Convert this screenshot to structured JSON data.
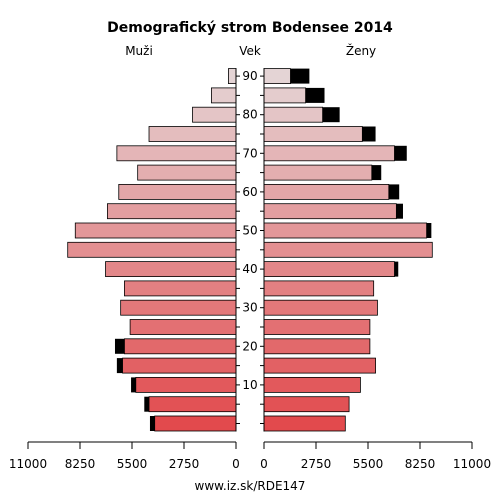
{
  "chart_data": {
    "type": "bar",
    "title": "Demografický strom Bodensee 2014",
    "left_label": "Muži",
    "center_label": "Vek",
    "right_label": "Ženy",
    "footer": "www.iz.sk/RDE147",
    "age_tick_labels": [
      "10",
      "20",
      "30",
      "40",
      "50",
      "60",
      "70",
      "80",
      "90"
    ],
    "age_tick_values": [
      10,
      20,
      30,
      40,
      50,
      60,
      70,
      80,
      90
    ],
    "x_tick_labels_left": [
      "11000",
      "8250",
      "5500",
      "2750",
      "0"
    ],
    "x_tick_values_left": [
      11000,
      8250,
      5500,
      2750,
      0
    ],
    "x_tick_labels_right": [
      "0",
      "2750",
      "5500",
      "8250",
      "11000"
    ],
    "x_tick_values_right": [
      0,
      2750,
      5500,
      8250,
      11000
    ],
    "xlim": [
      0,
      11000
    ],
    "age_groups": [
      "0-4",
      "5-9",
      "10-14",
      "15-19",
      "20-24",
      "25-29",
      "30-34",
      "35-39",
      "40-44",
      "45-49",
      "50-54",
      "55-59",
      "60-64",
      "65-69",
      "70-74",
      "75-79",
      "80-84",
      "85-89",
      "90+"
    ],
    "series": [
      {
        "name": "Muži",
        "values": [
          4300,
          4600,
          5300,
          6000,
          5900,
          5600,
          6100,
          5900,
          6900,
          8900,
          8500,
          6800,
          6200,
          5200,
          6300,
          4600,
          2300,
          1300,
          400
        ],
        "excess": [
          250,
          250,
          250,
          300,
          500,
          0,
          0,
          0,
          0,
          0,
          0,
          0,
          0,
          0,
          0,
          0,
          0,
          0,
          0
        ]
      },
      {
        "name": "Ženy",
        "values": [
          4300,
          4500,
          5100,
          5900,
          5600,
          5600,
          6000,
          5800,
          6900,
          8900,
          8600,
          7000,
          6600,
          5700,
          6900,
          5200,
          3100,
          2200,
          1400
        ],
        "excess": [
          0,
          0,
          0,
          0,
          0,
          0,
          0,
          0,
          200,
          0,
          250,
          350,
          550,
          500,
          650,
          700,
          900,
          1000,
          1000
        ]
      }
    ]
  }
}
